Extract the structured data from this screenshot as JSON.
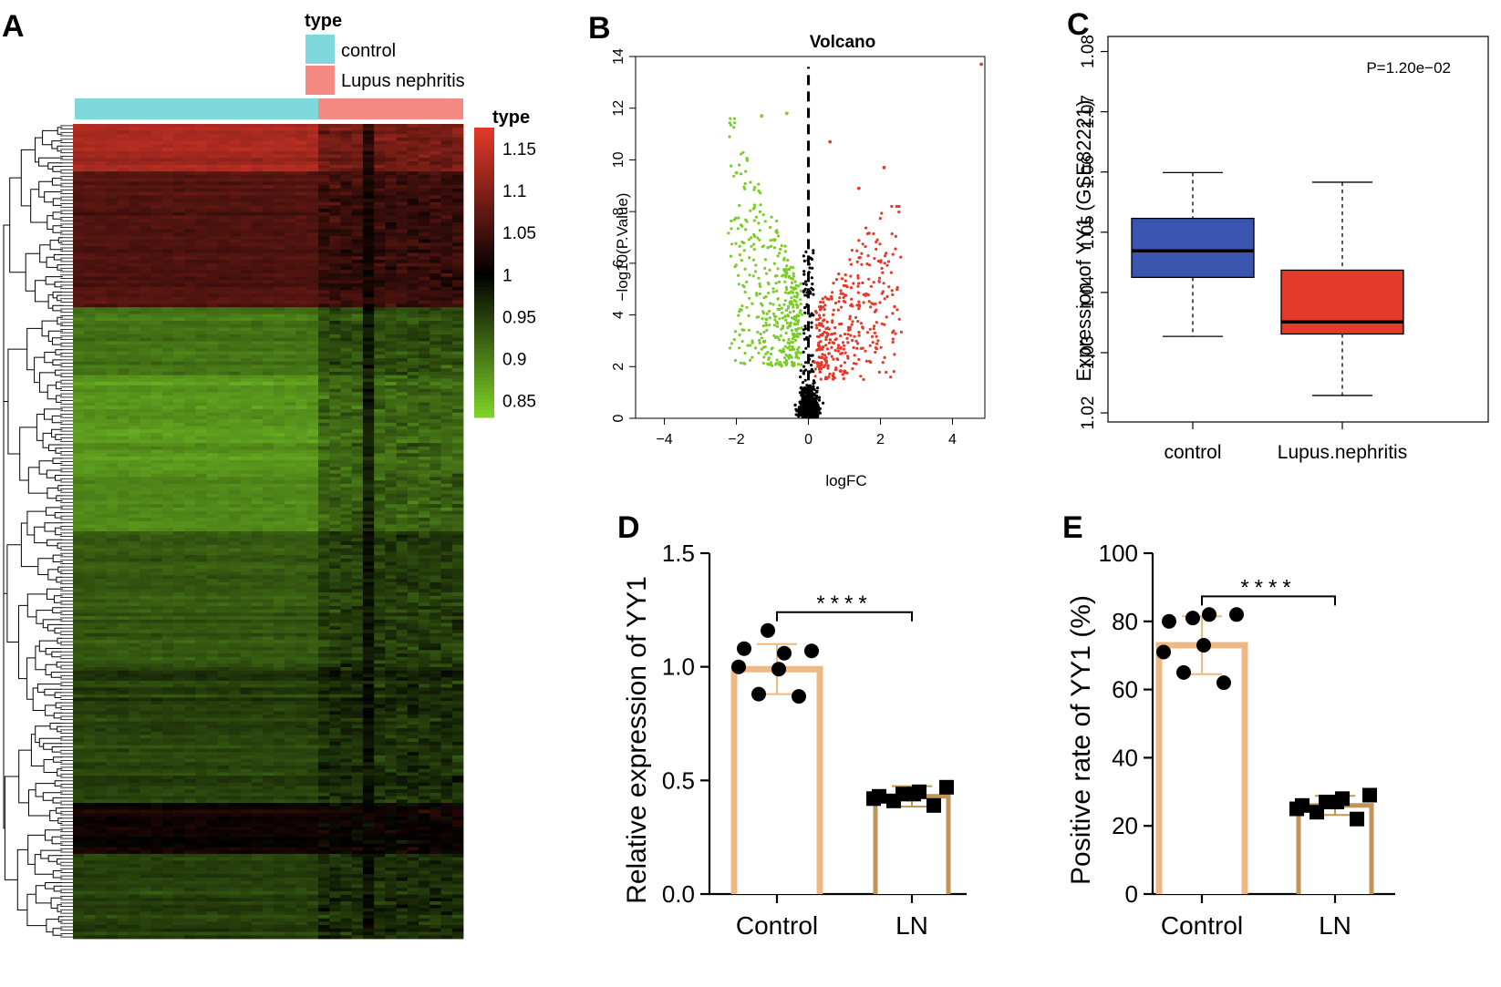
{
  "panel_labels": {
    "a": "A",
    "b": "B",
    "c": "C",
    "d": "D",
    "e": "E"
  },
  "chart_data": [
    {
      "panel": "A",
      "type": "heatmap",
      "title": "",
      "annotation_legend_title": "type",
      "groups": [
        {
          "name": "control",
          "color": "#7fd8dc"
        },
        {
          "name": "Lupus nephritis",
          "color": "#f58a82"
        }
      ],
      "color_scale_title": "type",
      "color_scale_ticks": [
        "1.15",
        "1.1",
        "1.05",
        "1",
        "0.95",
        "0.9",
        "0.85"
      ],
      "color_scale_range": [
        0.83,
        1.175
      ],
      "palette": {
        "high": "#e5392b",
        "mid": "#000000",
        "low": "#7fd428"
      },
      "column_split": {
        "control": 22,
        "lupus_nephritis": 13
      },
      "row_blocks": [
        {
          "rows": 14,
          "value": 1.13
        },
        {
          "rows": 40,
          "value": 1.06
        },
        {
          "rows": 20,
          "value": 0.91
        },
        {
          "rows": 28,
          "value": 0.88
        },
        {
          "rows": 18,
          "value": 0.89
        },
        {
          "rows": 40,
          "value": 0.93
        },
        {
          "rows": 40,
          "value": 0.95
        },
        {
          "rows": 15,
          "value": 1.01
        },
        {
          "rows": 25,
          "value": 0.95
        }
      ]
    },
    {
      "panel": "B",
      "type": "scatter",
      "title": "Volcano",
      "xlabel": "logFC",
      "ylabel": "−log10(P.Value)",
      "xlim": [
        -4.8,
        4.9
      ],
      "ylim": [
        0,
        14
      ],
      "xticks": [
        "−4",
        "−2",
        "0",
        "2",
        "4"
      ],
      "yticks": [
        "0",
        "2",
        "4",
        "6",
        "8",
        "10",
        "12",
        "14"
      ],
      "threshold_x": 0,
      "colors": {
        "down": "#7ccb2a",
        "up": "#e5392b",
        "ns": "#000000"
      },
      "highlight_points": [
        {
          "x": 4.8,
          "y": 13.7,
          "group": "up"
        },
        {
          "x": 2.1,
          "y": 9.7,
          "group": "up"
        },
        {
          "x": 1.4,
          "y": 8.9,
          "group": "up"
        },
        {
          "x": 0.6,
          "y": 10.7,
          "group": "up"
        },
        {
          "x": -1.3,
          "y": 11.7,
          "group": "down"
        },
        {
          "x": -0.6,
          "y": 11.8,
          "group": "down"
        },
        {
          "x": -2.0,
          "y": 9.5,
          "group": "down"
        }
      ]
    },
    {
      "panel": "C",
      "type": "box",
      "title": "",
      "ylabel": "Expression of YY1 (GSE82221)",
      "categories": [
        "control",
        "Lupus.nephritis"
      ],
      "annotation": "P=1.20e−02",
      "ylim": [
        1.0185,
        1.0825
      ],
      "yticks": [
        "1.02",
        "1.03",
        "1.04",
        "1.05",
        "1.06",
        "1.07",
        "1.08"
      ],
      "boxes": [
        {
          "name": "control",
          "min": 1.0327,
          "q1": 1.0425,
          "median": 1.0469,
          "q3": 1.0523,
          "max": 1.0599,
          "color": "#3a55b0"
        },
        {
          "name": "Lupus.nephritis",
          "min": 1.0229,
          "q1": 1.0331,
          "median": 1.0351,
          "q3": 1.0437,
          "max": 1.0583,
          "color": "#e5392b"
        }
      ]
    },
    {
      "panel": "D",
      "type": "bar",
      "title": "",
      "xlabel": "",
      "ylabel": "Relative expression of YY1",
      "categories": [
        "Control",
        "LN"
      ],
      "ylim": [
        0,
        1.5
      ],
      "yticks": [
        "0.0",
        "0.5",
        "1.0",
        "1.5"
      ],
      "significance": "****",
      "series": [
        {
          "name": "Control",
          "mean": 0.99,
          "sd": 0.11,
          "points": [
            1.16,
            1.08,
            1.06,
            1.07,
            1.0,
            0.99,
            0.88,
            0.87
          ],
          "marker": "circle",
          "color": "#eeb882"
        },
        {
          "name": "LN",
          "mean": 0.43,
          "sd": 0.045,
          "points": [
            0.44,
            0.43,
            0.45,
            0.47,
            0.42,
            0.44,
            0.41,
            0.39
          ],
          "marker": "square",
          "color": "#c0955a"
        }
      ]
    },
    {
      "panel": "E",
      "type": "bar",
      "title": "",
      "xlabel": "",
      "ylabel": "Positive rate of YY1 (%)",
      "categories": [
        "Control",
        "LN"
      ],
      "ylim": [
        0,
        100
      ],
      "yticks": [
        "0",
        "20",
        "40",
        "60",
        "80",
        "100"
      ],
      "significance": "****",
      "series": [
        {
          "name": "Control",
          "mean": 73,
          "sd": 8.5,
          "points": [
            81,
            80,
            82,
            82,
            71,
            73,
            65,
            62
          ],
          "marker": "circle",
          "color": "#eeb882"
        },
        {
          "name": "LN",
          "mean": 26,
          "sd": 2.8,
          "points": [
            27,
            26,
            28,
            29,
            25,
            27,
            24,
            22
          ],
          "marker": "square",
          "color": "#c0955a"
        }
      ]
    }
  ]
}
